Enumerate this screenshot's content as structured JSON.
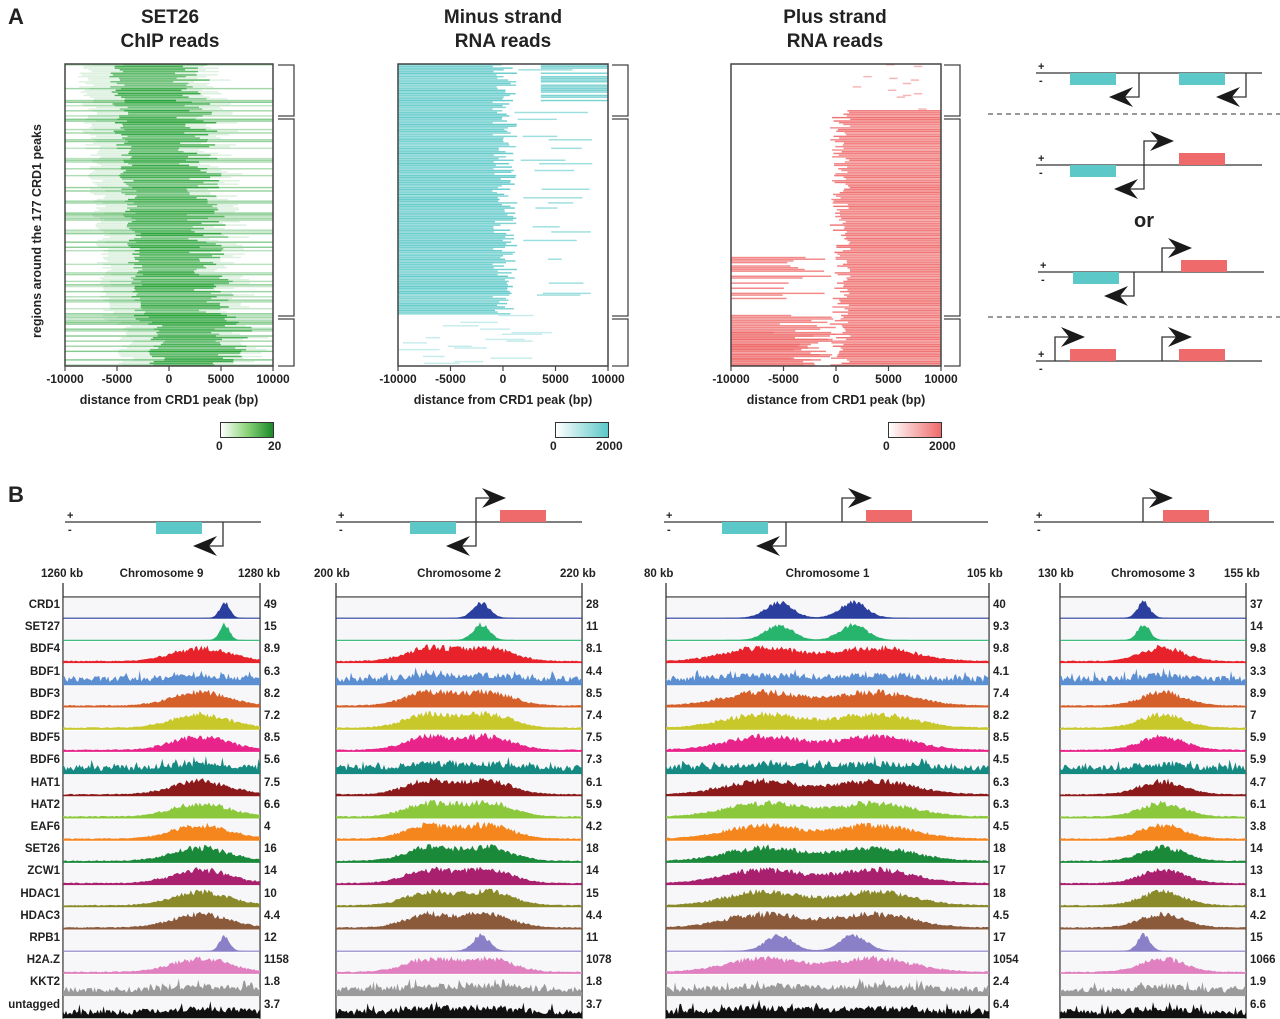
{
  "panel_a": {
    "letter": "A",
    "y_axis_label": "regions around the 177 CRD1 peaks",
    "x_axis_label": "distance from CRD1 peak (bp)",
    "x_ticks": [
      "-10000",
      "-5000",
      "0",
      "5000",
      "10000"
    ],
    "heatmaps": [
      {
        "title_line1": "SET26",
        "title_line2": "ChIP reads",
        "color": "#1e9e2e",
        "scale_min": "0",
        "scale_max": "20"
      },
      {
        "title_line1": "Minus strand",
        "title_line2": "RNA reads",
        "color": "#5cc8c8",
        "scale_min": "0",
        "scale_max": "2000"
      },
      {
        "title_line1": "Plus strand",
        "title_line2": "RNA reads",
        "color": "#ef6a6a",
        "scale_min": "0",
        "scale_max": "2000"
      }
    ],
    "schematic_or_label": "or",
    "strand_plus": "+",
    "strand_minus": "-"
  },
  "panel_b": {
    "letter": "B",
    "track_names": [
      "CRD1",
      "SET27",
      "BDF4",
      "BDF1",
      "BDF3",
      "BDF2",
      "BDF5",
      "BDF6",
      "HAT1",
      "HAT2",
      "EAF6",
      "SET26",
      "ZCW1",
      "HDAC1",
      "HDAC3",
      "RPB1",
      "H2A.Z",
      "KKT2",
      "untagged"
    ],
    "track_colors": [
      "#2a3f9e",
      "#27b56e",
      "#e8222a",
      "#5b8fd2",
      "#d6602a",
      "#c8c82a",
      "#e8238a",
      "#158a82",
      "#8c1a1a",
      "#8cc83c",
      "#f5861e",
      "#1a8a3a",
      "#a8206e",
      "#8a8a2a",
      "#8a5a3a",
      "#8a80c8",
      "#e080c0",
      "#9a9a9a",
      "#111111"
    ],
    "regions": [
      {
        "chromosome": "Chromosome 9",
        "start": "1260 kb",
        "end": "1280 kb",
        "max_values": [
          "49",
          "15",
          "8.9",
          "6.3",
          "8.2",
          "7.2",
          "8.5",
          "5.6",
          "7.5",
          "6.6",
          "4",
          "16",
          "14",
          "10",
          "4.4",
          "12",
          "1158",
          "1.8",
          "3.7"
        ]
      },
      {
        "chromosome": "Chromosome 2",
        "start": "200 kb",
        "end": "220 kb",
        "max_values": [
          "28",
          "11",
          "8.1",
          "4.4",
          "8.5",
          "7.4",
          "7.5",
          "7.3",
          "6.1",
          "5.9",
          "4.2",
          "18",
          "14",
          "15",
          "4.4",
          "11",
          "1078",
          "1.8",
          "3.7"
        ]
      },
      {
        "chromosome": "Chromosome 1",
        "start": "80 kb",
        "end": "105 kb",
        "max_values": [
          "40",
          "9.3",
          "9.8",
          "4.1",
          "7.4",
          "8.2",
          "8.5",
          "4.5",
          "6.3",
          "6.3",
          "4.5",
          "18",
          "17",
          "18",
          "4.5",
          "17",
          "1054",
          "2.4",
          "6.4"
        ]
      },
      {
        "chromosome": "Chromosome 3",
        "start": "130 kb",
        "end": "155 kb",
        "max_values": [
          "37",
          "14",
          "9.8",
          "3.3",
          "8.9",
          "7",
          "5.9",
          "5.9",
          "4.7",
          "6.1",
          "3.8",
          "14",
          "13",
          "8.1",
          "4.2",
          "15",
          "1066",
          "1.9",
          "6.6"
        ]
      }
    ]
  },
  "chart_data": [
    {
      "type": "heatmap",
      "title": "SET26 ChIP reads",
      "xlabel": "distance from CRD1 peak (bp)",
      "ylabel": "regions around the 177 CRD1 peaks",
      "xlim": [
        -10000,
        10000
      ],
      "rows": 177,
      "colorbar": [
        0,
        20
      ]
    },
    {
      "type": "heatmap",
      "title": "Minus strand RNA reads",
      "xlabel": "distance from CRD1 peak (bp)",
      "xlim": [
        -10000,
        10000
      ],
      "rows": 177,
      "colorbar": [
        0,
        2000
      ]
    },
    {
      "type": "heatmap",
      "title": "Plus strand RNA reads",
      "xlabel": "distance from CRD1 peak (bp)",
      "xlim": [
        -10000,
        10000
      ],
      "rows": 177,
      "colorbar": [
        0,
        2000
      ]
    },
    {
      "type": "area",
      "title": "Chromosome 9",
      "xlim_kb": [
        1260,
        1280
      ],
      "series_max": {
        "CRD1": 49,
        "SET27": 15,
        "BDF4": 8.9,
        "BDF1": 6.3,
        "BDF3": 8.2,
        "BDF2": 7.2,
        "BDF5": 8.5,
        "BDF6": 5.6,
        "HAT1": 7.5,
        "HAT2": 6.6,
        "EAF6": 4,
        "SET26": 16,
        "ZCW1": 14,
        "HDAC1": 10,
        "HDAC3": 4.4,
        "RPB1": 12,
        "H2A.Z": 1158,
        "KKT2": 1.8,
        "untagged": 3.7
      }
    },
    {
      "type": "area",
      "title": "Chromosome 2",
      "xlim_kb": [
        200,
        220
      ],
      "series_max": {
        "CRD1": 28,
        "SET27": 11,
        "BDF4": 8.1,
        "BDF1": 4.4,
        "BDF3": 8.5,
        "BDF2": 7.4,
        "BDF5": 7.5,
        "BDF6": 7.3,
        "HAT1": 6.1,
        "HAT2": 5.9,
        "EAF6": 4.2,
        "SET26": 18,
        "ZCW1": 14,
        "HDAC1": 15,
        "HDAC3": 4.4,
        "RPB1": 11,
        "H2A.Z": 1078,
        "KKT2": 1.8,
        "untagged": 3.7
      }
    },
    {
      "type": "area",
      "title": "Chromosome 1",
      "xlim_kb": [
        80,
        105
      ],
      "series_max": {
        "CRD1": 40,
        "SET27": 9.3,
        "BDF4": 9.8,
        "BDF1": 4.1,
        "BDF3": 7.4,
        "BDF2": 8.2,
        "BDF5": 8.5,
        "BDF6": 4.5,
        "HAT1": 6.3,
        "HAT2": 6.3,
        "EAF6": 4.5,
        "SET26": 18,
        "ZCW1": 17,
        "HDAC1": 18,
        "HDAC3": 4.5,
        "RPB1": 17,
        "H2A.Z": 1054,
        "KKT2": 2.4,
        "untagged": 6.4
      }
    },
    {
      "type": "area",
      "title": "Chromosome 3",
      "xlim_kb": [
        130,
        155
      ],
      "series_max": {
        "CRD1": 37,
        "SET27": 14,
        "BDF4": 9.8,
        "BDF1": 3.3,
        "BDF3": 8.9,
        "BDF2": 7,
        "BDF5": 5.9,
        "BDF6": 5.9,
        "HAT1": 4.7,
        "HAT2": 6.1,
        "EAF6": 3.8,
        "SET26": 14,
        "ZCW1": 13,
        "HDAC1": 8.1,
        "HDAC3": 4.2,
        "RPB1": 15,
        "H2A.Z": 1066,
        "KKT2": 1.9,
        "untagged": 6.6
      }
    }
  ]
}
